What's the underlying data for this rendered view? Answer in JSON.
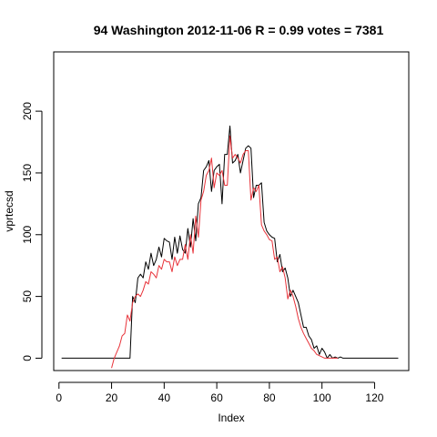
{
  "chart_data": {
    "type": "line",
    "title": "94 Washington 2012-11-06 R = 0.99 votes = 7381",
    "xlabel": "Index",
    "ylabel": "vprtecsd",
    "xlim": [
      -2,
      133
    ],
    "ylim": [
      -10,
      248
    ],
    "xticks": [
      0,
      20,
      40,
      60,
      80,
      100,
      120
    ],
    "yticks": [
      0,
      50,
      100,
      150,
      200
    ],
    "grid": false,
    "series": [
      {
        "color": "#000000",
        "x": [
          1,
          2,
          3,
          4,
          5,
          6,
          7,
          8,
          9,
          10,
          11,
          12,
          13,
          14,
          15,
          16,
          17,
          18,
          19,
          20,
          21,
          22,
          23,
          24,
          25,
          26,
          27,
          28,
          29,
          30,
          31,
          32,
          33,
          34,
          35,
          36,
          37,
          38,
          39,
          40,
          41,
          42,
          43,
          44,
          45,
          46,
          47,
          48,
          49,
          50,
          51,
          52,
          53,
          54,
          55,
          56,
          57,
          58,
          59,
          60,
          61,
          62,
          63,
          64,
          65,
          66,
          67,
          68,
          69,
          70,
          71,
          72,
          73,
          74,
          75,
          76,
          77,
          78,
          79,
          80,
          81,
          82,
          83,
          84,
          85,
          86,
          87,
          88,
          89,
          90,
          91,
          92,
          93,
          94,
          95,
          96,
          97,
          98,
          99,
          100,
          101,
          102,
          103,
          104,
          105,
          106,
          107,
          108,
          109,
          110,
          111,
          112,
          113,
          114,
          115,
          116,
          117,
          118,
          119,
          120,
          121,
          122,
          123,
          124,
          125,
          126,
          127,
          128,
          129
        ],
        "y": [
          0,
          0,
          0,
          0,
          0,
          0,
          0,
          0,
          0,
          0,
          0,
          0,
          0,
          0,
          0,
          0,
          0,
          0,
          0,
          0,
          0,
          0,
          0,
          0,
          0,
          0,
          0,
          50,
          45,
          65,
          68,
          65,
          78,
          72,
          85,
          75,
          80,
          90,
          82,
          97,
          95,
          94,
          80,
          98,
          85,
          99,
          88,
          85,
          105,
          90,
          113,
          95,
          125,
          130,
          152,
          155,
          160,
          135,
          152,
          155,
          157,
          125,
          165,
          165,
          188,
          158,
          160,
          165,
          150,
          160,
          170,
          172,
          170,
          130,
          140,
          140,
          142,
          110,
          103,
          100,
          98,
          97,
          78,
          84,
          70,
          73,
          65,
          50,
          55,
          50,
          45,
          35,
          25,
          25,
          18,
          15,
          8,
          10,
          3,
          8,
          5,
          0,
          3,
          0,
          1,
          0,
          1,
          0,
          0,
          0,
          0,
          0,
          0,
          0,
          0,
          0,
          0,
          0,
          0,
          0,
          0,
          0,
          0,
          0,
          0,
          0,
          0,
          0,
          0
        ],
        "x_start_index": 1
      },
      {
        "color": "#e8333a",
        "x": [
          20,
          21,
          22,
          23,
          24,
          25,
          26,
          27,
          28,
          29,
          30,
          31,
          32,
          33,
          34,
          35,
          36,
          37,
          38,
          39,
          40,
          41,
          42,
          43,
          44,
          45,
          46,
          47,
          48,
          49,
          50,
          51,
          52,
          53,
          54,
          55,
          56,
          57,
          58,
          59,
          60,
          61,
          62,
          63,
          64,
          65,
          66,
          67,
          68,
          69,
          70,
          71,
          72,
          73,
          74,
          75,
          76,
          77,
          78,
          79,
          80,
          81,
          82,
          83,
          84,
          85,
          86,
          87,
          88,
          89,
          90,
          91,
          92,
          93,
          94,
          95,
          96,
          97,
          98,
          99,
          100,
          101,
          102,
          103,
          104,
          105,
          106
        ],
        "y": [
          -8,
          0,
          5,
          10,
          18,
          20,
          35,
          30,
          45,
          50,
          52,
          50,
          55,
          62,
          60,
          70,
          68,
          65,
          75,
          72,
          80,
          78,
          78,
          70,
          82,
          75,
          80,
          80,
          92,
          80,
          100,
          85,
          115,
          98,
          128,
          135,
          148,
          152,
          162,
          138,
          150,
          148,
          152,
          140,
          140,
          180,
          162,
          165,
          162,
          158,
          165,
          168,
          168,
          128,
          138,
          135,
          140,
          108,
          103,
          100,
          96,
          95,
          80,
          82,
          70,
          74,
          65,
          48,
          55,
          50,
          42,
          32,
          25,
          20,
          16,
          12,
          8,
          6,
          3,
          2,
          1,
          0,
          0,
          0,
          0,
          0,
          0
        ]
      }
    ]
  }
}
